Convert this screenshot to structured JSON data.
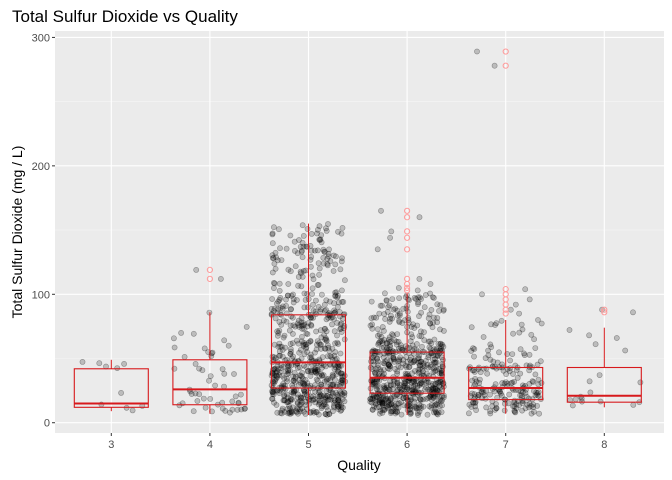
{
  "chart_data": {
    "type": "boxplot_with_jitter",
    "title": "Total Sulfur Dioxide vs Quality",
    "xlabel": "Quality",
    "ylabel": "Total Sulfur Dioxide (mg / L)",
    "categories": [
      "3",
      "4",
      "5",
      "6",
      "7",
      "8"
    ],
    "ylim": [
      -8,
      305
    ],
    "yticks": [
      0,
      100,
      200,
      300
    ],
    "grid": true,
    "colors": {
      "panel": "#EBEBEB",
      "grid_major": "#FFFFFF",
      "box": "#D7191C",
      "points": "#000000",
      "outlier": "#FF9999"
    },
    "boxes": [
      {
        "category": "3",
        "q1": 12,
        "median": 15,
        "q3": 42,
        "whisker_low": 9,
        "whisker_high": 49,
        "outliers": []
      },
      {
        "category": "4",
        "q1": 14,
        "median": 26,
        "q3": 49,
        "whisker_low": 7,
        "whisker_high": 86,
        "outliers": [
          112,
          119
        ]
      },
      {
        "category": "5",
        "q1": 27,
        "median": 47,
        "q3": 84,
        "whisker_low": 6,
        "whisker_high": 155,
        "outliers": []
      },
      {
        "category": "6",
        "q1": 23,
        "median": 35,
        "q3": 55,
        "whisker_low": 6,
        "whisker_high": 101,
        "outliers": [
          103,
          105,
          108,
          112,
          135,
          144,
          149,
          160,
          165
        ]
      },
      {
        "category": "7",
        "q1": 18,
        "median": 27,
        "q3": 43,
        "whisker_low": 7,
        "whisker_high": 80,
        "outliers": [
          85,
          88,
          92,
          96,
          100,
          104,
          278,
          289
        ]
      },
      {
        "category": "8",
        "q1": 16,
        "median": 21,
        "q3": 43,
        "whisker_low": 12,
        "whisker_high": 74,
        "outliers": [
          86,
          88
        ]
      }
    ],
    "jitter_counts": [
      10,
      53,
      681,
      638,
      199,
      18
    ]
  }
}
